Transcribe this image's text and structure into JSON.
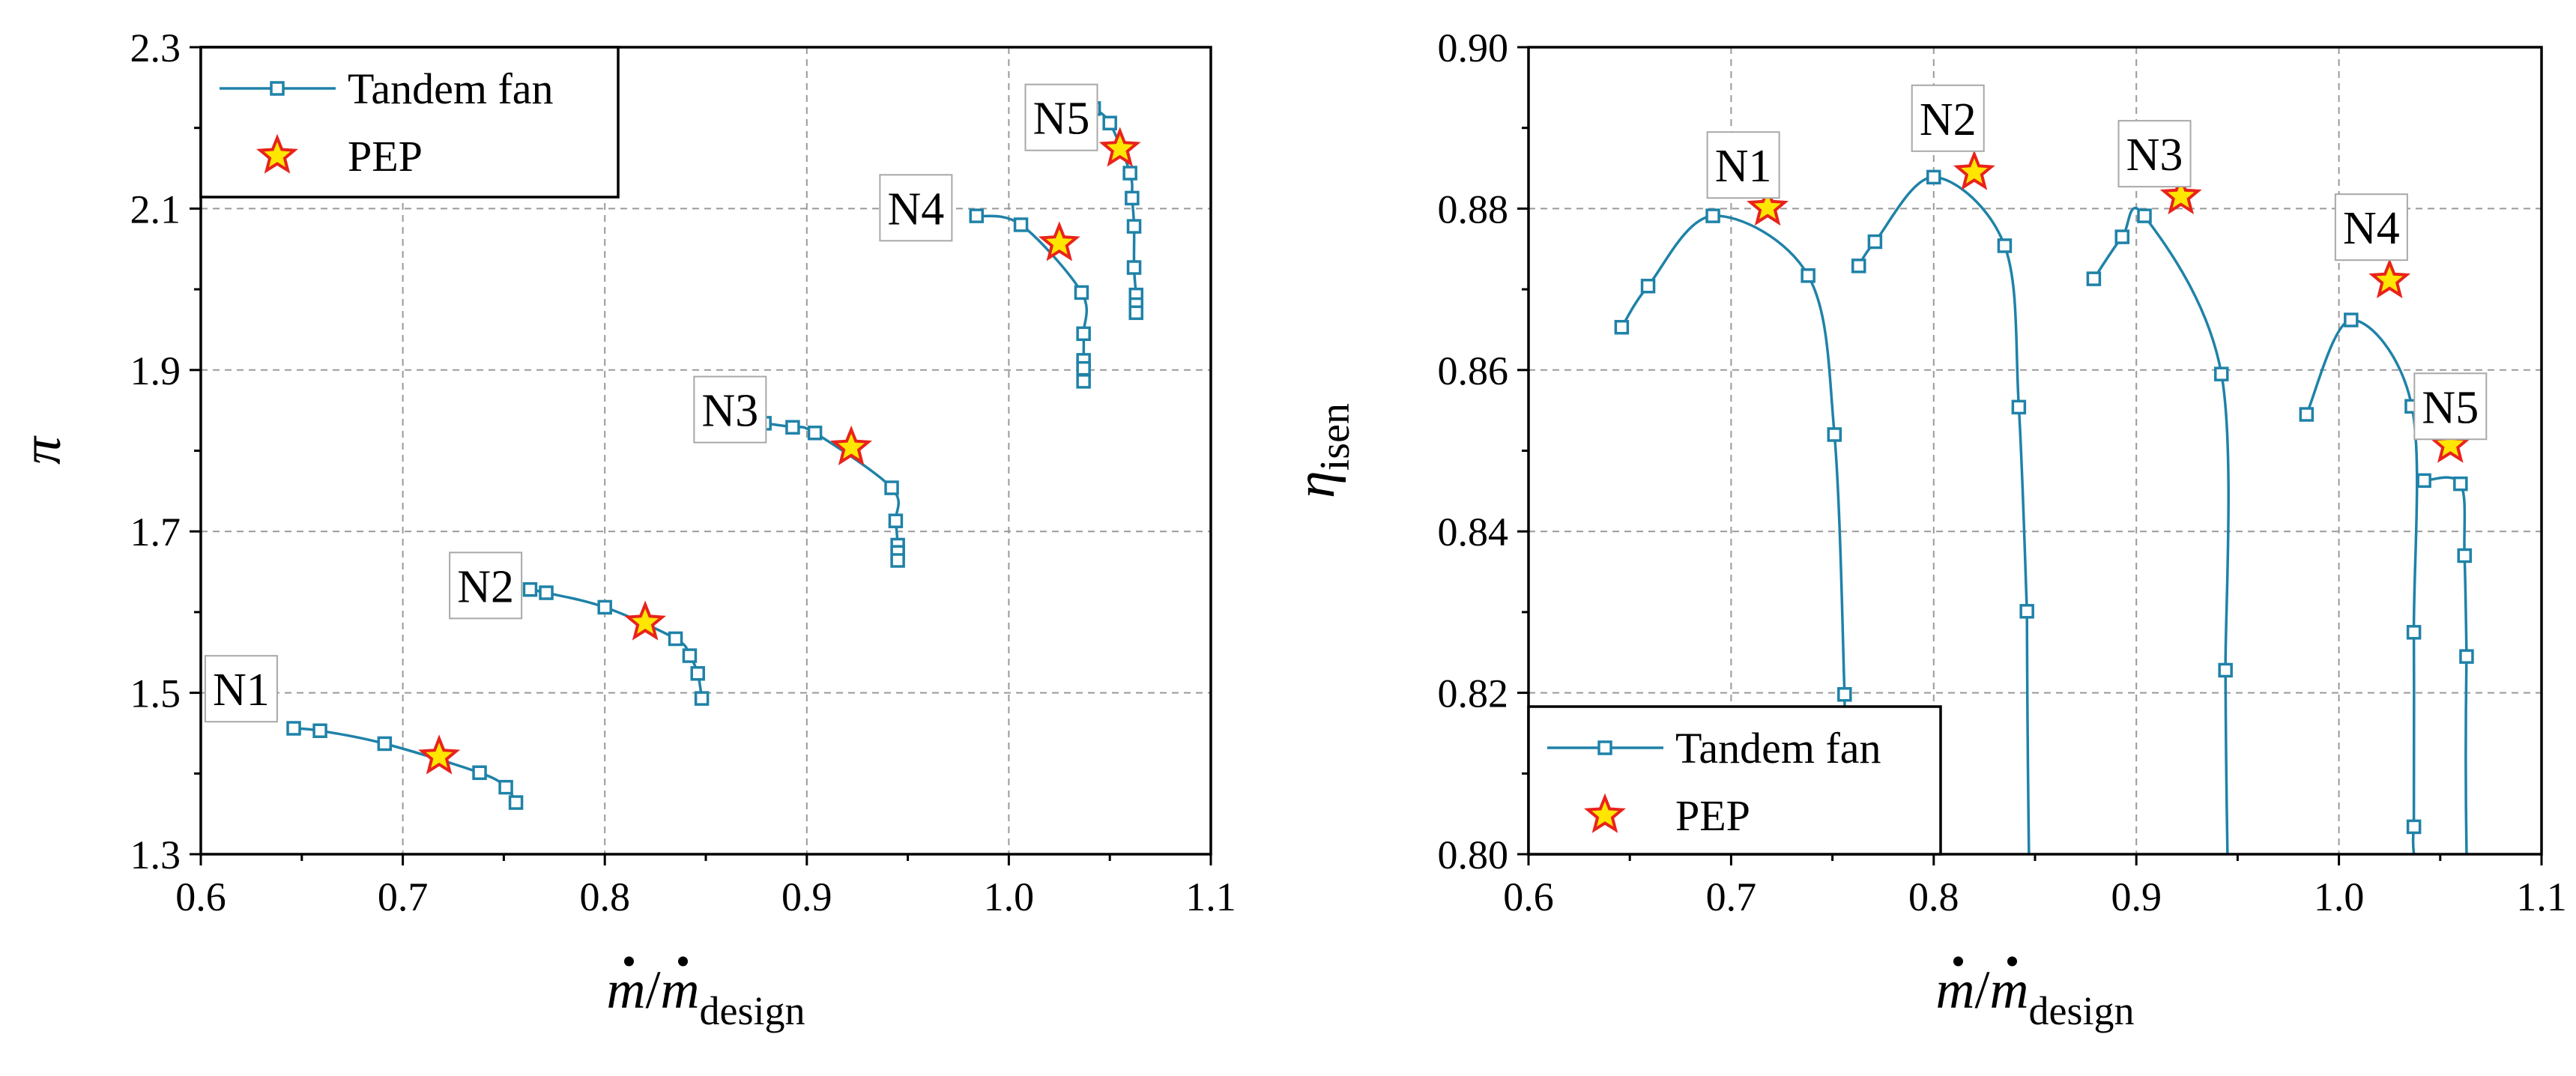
{
  "colors": {
    "line": "#1f82a8",
    "star_fill": "#ffe600",
    "star_stroke": "#e8231b",
    "grid": "#9a9a9a"
  },
  "chart_data": [
    {
      "type": "line",
      "xlabel_parts": {
        "var": "m",
        "slash": "/",
        "var2": "m",
        "sub": "design"
      },
      "ylabel": "π",
      "xlim": [
        0.6,
        1.1
      ],
      "ylim": [
        1.3,
        2.3
      ],
      "x_ticks": [
        "0.6",
        "0.7",
        "0.8",
        "0.9",
        "1.0",
        "1.1"
      ],
      "y_ticks": [
        "1.3",
        "1.5",
        "1.7",
        "1.9",
        "2.1",
        "2.3"
      ],
      "legend": {
        "position": "top-left",
        "entries": [
          "Tandem fan",
          "PEP"
        ]
      },
      "series": [
        {
          "name": "N1",
          "x": [
            0.646,
            0.659,
            0.691,
            0.738,
            0.751,
            0.756
          ],
          "y": [
            1.456,
            1.453,
            1.437,
            1.401,
            1.383,
            1.364
          ],
          "pep": [
            0.718,
            1.421
          ]
        },
        {
          "name": "N2",
          "x": [
            0.763,
            0.771,
            0.8,
            0.835,
            0.842,
            0.846,
            0.848
          ],
          "y": [
            1.628,
            1.624,
            1.606,
            1.567,
            1.546,
            1.524,
            1.493
          ],
          "pep": [
            0.82,
            1.587
          ]
        },
        {
          "name": "N3",
          "x": [
            0.879,
            0.893,
            0.904,
            0.942,
            0.944,
            0.945,
            0.945,
            0.945
          ],
          "y": [
            1.834,
            1.829,
            1.822,
            1.754,
            1.713,
            1.683,
            1.674,
            1.664
          ],
          "pep": [
            0.922,
            1.804
          ]
        },
        {
          "name": "N4",
          "x": [
            0.984,
            1.006,
            1.036,
            1.037,
            1.037,
            1.037,
            1.037
          ],
          "y": [
            2.091,
            2.08,
            1.996,
            1.945,
            1.912,
            1.902,
            1.886
          ],
          "pep": [
            1.025,
            2.057
          ]
        },
        {
          "name": "N5",
          "x": [
            1.042,
            1.05,
            1.06,
            1.061,
            1.062,
            1.062,
            1.063,
            1.063,
            1.063
          ],
          "y": [
            2.224,
            2.206,
            2.144,
            2.113,
            2.078,
            2.027,
            1.993,
            1.981,
            1.971
          ],
          "pep": [
            1.055,
            2.174
          ]
        }
      ],
      "annotations": [
        {
          "text": "N1",
          "x": 0.62,
          "y": 1.505
        },
        {
          "text": "N2",
          "x": 0.741,
          "y": 1.633
        },
        {
          "text": "N3",
          "x": 0.862,
          "y": 1.851
        },
        {
          "text": "N4",
          "x": 0.954,
          "y": 2.101
        },
        {
          "text": "N5",
          "x": 1.026,
          "y": 2.213
        }
      ]
    },
    {
      "type": "line",
      "xlabel_parts": {
        "var": "m",
        "slash": "/",
        "var2": "m",
        "sub": "design"
      },
      "ylabel_parts": {
        "var": "η",
        "sub": "isen"
      },
      "xlim": [
        0.6,
        1.1
      ],
      "ylim": [
        0.8,
        0.9
      ],
      "x_ticks": [
        "0.6",
        "0.7",
        "0.8",
        "0.9",
        "1.0",
        "1.1"
      ],
      "y_ticks": [
        "0.80",
        "0.82",
        "0.84",
        "0.86",
        "0.88",
        "0.90"
      ],
      "legend": {
        "position": "bottom-left",
        "entries": [
          "Tandem fan",
          "PEP"
        ]
      },
      "series": [
        {
          "name": "N1",
          "x": [
            0.646,
            0.659,
            0.691,
            0.738,
            0.751,
            0.756
          ],
          "y": [
            0.8653,
            0.8704,
            0.8791,
            0.8717,
            0.852,
            0.8198
          ],
          "pep": [
            0.718,
            0.8801
          ]
        },
        {
          "name": "N2",
          "x": [
            0.763,
            0.771,
            0.8,
            0.835,
            0.842,
            0.846
          ],
          "y": [
            0.8729,
            0.8759,
            0.8839,
            0.8754,
            0.8554,
            0.8301
          ],
          "pep": [
            0.82,
            0.8845
          ]
        },
        {
          "name": "N3",
          "x": [
            0.879,
            0.893,
            0.904,
            0.942,
            0.944
          ],
          "y": [
            0.8713,
            0.8765,
            0.8791,
            0.8595,
            0.8228
          ],
          "pep": [
            0.922,
            0.8815
          ]
        },
        {
          "name": "N4",
          "x": [
            0.984,
            1.006,
            1.036,
            1.037,
            1.037
          ],
          "y": [
            0.8545,
            0.8662,
            0.8555,
            0.8275,
            0.8034
          ],
          "pep": [
            1.025,
            0.8711
          ]
        },
        {
          "name": "N5",
          "x": [
            1.042,
            1.06,
            1.062,
            1.063
          ],
          "y": [
            0.8463,
            0.8459,
            0.837,
            0.8245
          ],
          "pep": [
            1.055,
            0.8507
          ]
        }
      ],
      "tails": [
        {
          "from": [
            0.756,
            0.8198
          ],
          "to": [
            0.757,
            0.8
          ]
        },
        {
          "from": [
            0.846,
            0.8301
          ],
          "to": [
            0.847,
            0.8
          ]
        },
        {
          "from": [
            0.944,
            0.8228
          ],
          "to": [
            0.945,
            0.8
          ]
        },
        {
          "from": [
            1.037,
            0.8034
          ],
          "to": [
            1.037,
            0.8
          ]
        },
        {
          "from": [
            1.063,
            0.8245
          ],
          "to": [
            1.063,
            0.8
          ]
        }
      ],
      "annotations": [
        {
          "text": "N1",
          "x": 0.706,
          "y": 0.8854
        },
        {
          "text": "N2",
          "x": 0.807,
          "y": 0.8912
        },
        {
          "text": "N3",
          "x": 0.909,
          "y": 0.8868
        },
        {
          "text": "N4",
          "x": 1.016,
          "y": 0.8777
        },
        {
          "text": "N5",
          "x": 1.055,
          "y": 0.8555
        }
      ]
    }
  ]
}
